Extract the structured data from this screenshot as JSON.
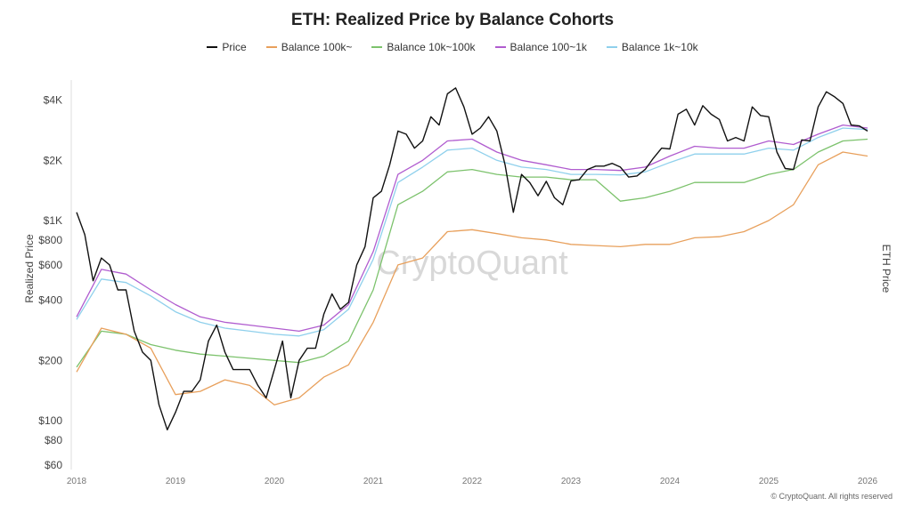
{
  "chart_data": {
    "type": "line",
    "title": "ETH: Realized Price by Balance Cohorts",
    "ylabel": "Realized Price",
    "y2label": "ETH Price",
    "yscale": "log",
    "ylim": [
      60,
      5000
    ],
    "yticks": [
      "$60",
      "$80",
      "$100",
      "$200",
      "$400",
      "$600",
      "$800",
      "$1K",
      "$2K",
      "$4K"
    ],
    "ytick_values": [
      60,
      80,
      100,
      200,
      400,
      600,
      800,
      1000,
      2000,
      4000
    ],
    "xlim": [
      "2018-01",
      "2026-02"
    ],
    "xticks": [
      "2018",
      "2019",
      "2020",
      "2021",
      "2022",
      "2023",
      "2024",
      "2025",
      "2026"
    ],
    "grid": false,
    "legend_position": "top",
    "watermark": "CryptoQuant",
    "footer": "© CryptoQuant. All rights reserved",
    "series": [
      {
        "name": "Price",
        "color": "#111111",
        "frequency": "monthly",
        "start": "2018-01",
        "values": [
          1100,
          850,
          500,
          650,
          600,
          450,
          450,
          280,
          220,
          200,
          120,
          90,
          110,
          140,
          140,
          160,
          250,
          300,
          220,
          180,
          180,
          180,
          150,
          130,
          180,
          250,
          130,
          200,
          230,
          230,
          340,
          430,
          360,
          390,
          600,
          740,
          1300,
          1400,
          1900,
          2800,
          2700,
          2300,
          2500,
          3300,
          3000,
          4300,
          4600,
          3700,
          2700,
          2900,
          3300,
          2800,
          1900,
          1100,
          1700,
          1550,
          1330,
          1570,
          1300,
          1200,
          1580,
          1600,
          1800,
          1870,
          1870,
          1930,
          1850,
          1650,
          1670,
          1800,
          2050,
          2300,
          2280,
          3400,
          3600,
          3000,
          3750,
          3400,
          3200,
          2500,
          2600,
          2500,
          3700,
          3350,
          3300,
          2200,
          1820,
          1800,
          2530,
          2500,
          3700,
          4400,
          4150,
          3850,
          3000,
          2970,
          2800
        ]
      },
      {
        "name": "Balance 100k~",
        "color": "#e8a05c",
        "frequency": "quarterly",
        "start": "2018-01",
        "values": [
          175,
          290,
          270,
          230,
          135,
          140,
          160,
          150,
          120,
          130,
          165,
          190,
          310,
          600,
          650,
          880,
          900,
          860,
          820,
          800,
          760,
          750,
          740,
          760,
          760,
          820,
          830,
          880,
          1000,
          1200,
          1900,
          2200,
          2100
        ]
      },
      {
        "name": "Balance 10k~100k",
        "color": "#7cc26c",
        "frequency": "quarterly",
        "start": "2018-01",
        "values": [
          185,
          280,
          270,
          240,
          225,
          215,
          210,
          205,
          200,
          195,
          210,
          250,
          450,
          1200,
          1400,
          1750,
          1800,
          1700,
          1650,
          1650,
          1600,
          1600,
          1250,
          1300,
          1400,
          1550,
          1550,
          1550,
          1700,
          1800,
          2200,
          2500,
          2550
        ]
      },
      {
        "name": "Balance 100~1k",
        "color": "#b05ccf",
        "frequency": "quarterly",
        "start": "2018-01",
        "values": [
          330,
          570,
          540,
          450,
          380,
          330,
          310,
          300,
          290,
          280,
          300,
          380,
          700,
          1700,
          2000,
          2500,
          2550,
          2200,
          2000,
          1900,
          1800,
          1800,
          1780,
          1850,
          2100,
          2350,
          2300,
          2300,
          2500,
          2400,
          2700,
          3000,
          2900
        ]
      },
      {
        "name": "Balance 1k~10k",
        "color": "#8fd0ec",
        "frequency": "quarterly",
        "start": "2018-01",
        "values": [
          320,
          510,
          490,
          420,
          350,
          310,
          290,
          280,
          270,
          265,
          285,
          360,
          640,
          1550,
          1850,
          2250,
          2300,
          2000,
          1850,
          1800,
          1700,
          1700,
          1690,
          1750,
          1950,
          2150,
          2150,
          2150,
          2300,
          2250,
          2600,
          2900,
          2850
        ]
      }
    ]
  }
}
